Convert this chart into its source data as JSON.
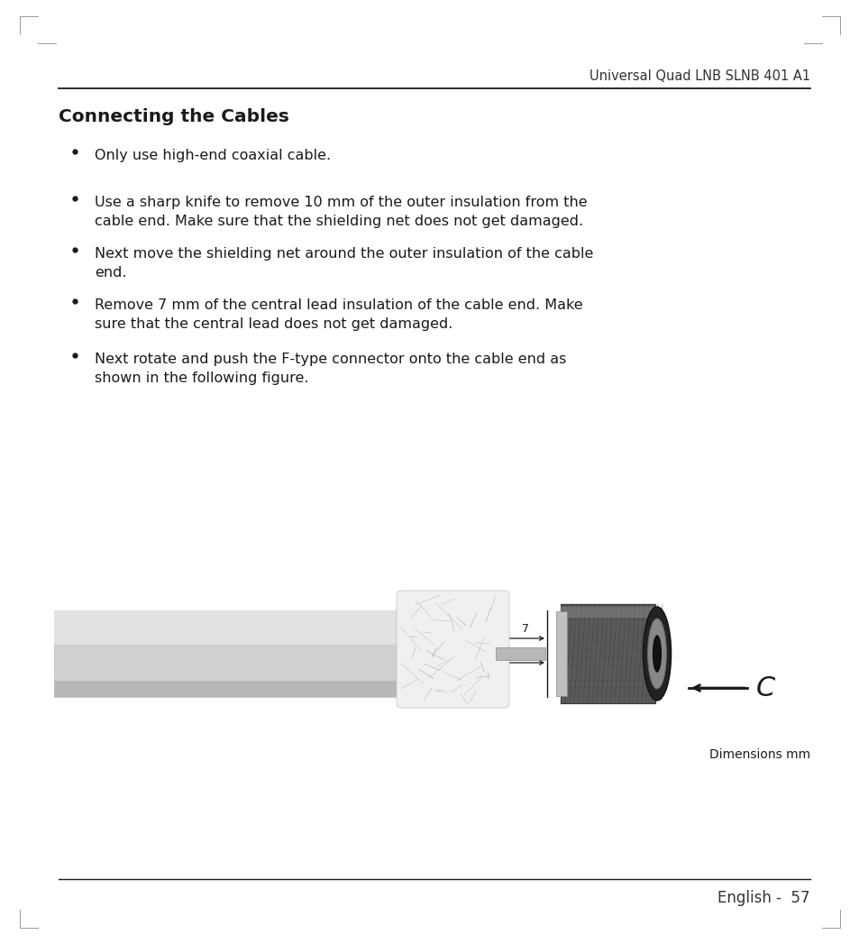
{
  "header_text": "Universal Quad LNB SLNB 401 A1",
  "title": "Connecting the Cables",
  "bullet1_line1": "Only use high-end coaxial cable.",
  "bullet2_line1": "Use a sharp knife to remove 10 mm of the outer insulation from the",
  "bullet2_line2": "cable end. Make sure that the shielding net does not get damaged.",
  "bullet3_line1": "Next move the shielding net around the outer insulation of the cable",
  "bullet3_line2": "end.",
  "bullet4_line1": "Remove 7 mm of the central lead insulation of the cable end. Make",
  "bullet4_line2": "sure that the central lead does not get damaged.",
  "bullet5_line1": "Next rotate and push the F-type connector onto the cable end as",
  "bullet5_line2": "shown in the following figure.",
  "dimensions_label": "Dimensions mm",
  "footer_text": "English -  57",
  "bg_color": "#ffffff",
  "text_color": "#1a1a1a",
  "header_color": "#333333",
  "title_fontsize": 14.5,
  "header_fontsize": 10.5,
  "body_fontsize": 11.5,
  "footer_fontsize": 12,
  "page_width": 9.54,
  "page_height": 10.47
}
